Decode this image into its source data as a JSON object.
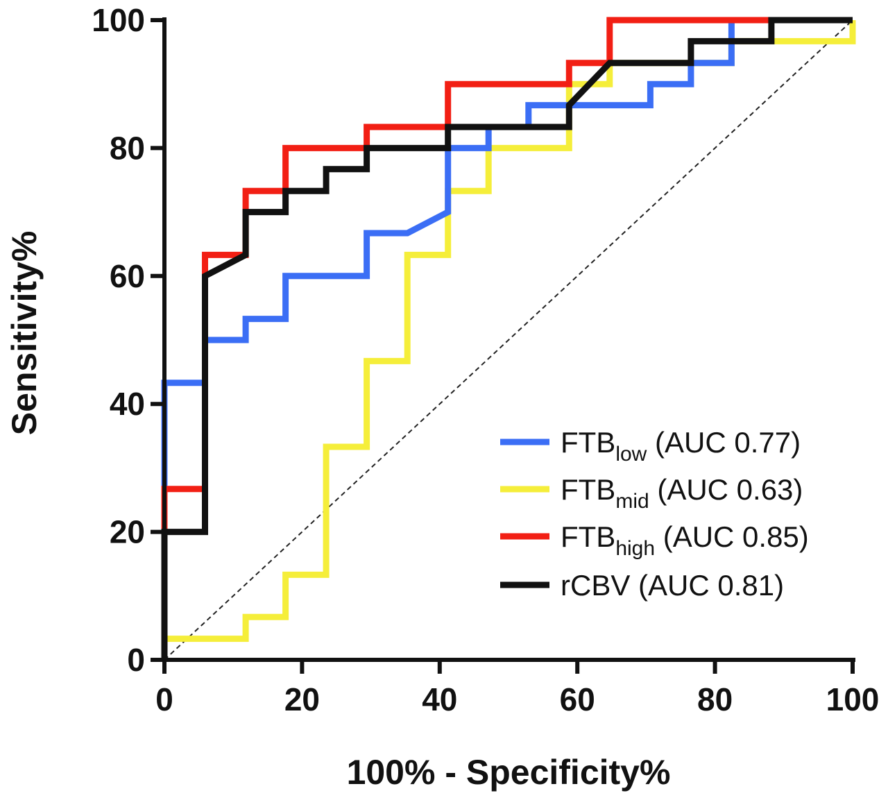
{
  "chart_data": {
    "type": "line",
    "xlabel": "100% - Specificity%",
    "ylabel": "Sensitivity%",
    "xlim": [
      0,
      100
    ],
    "ylim": [
      0,
      100
    ],
    "x_ticks": [
      "0",
      "20",
      "40",
      "60",
      "80",
      "100"
    ],
    "y_ticks": [
      "0",
      "20",
      "40",
      "60",
      "80",
      "100"
    ],
    "grid": false,
    "legend_position": "bottom-right",
    "reference_line": "diagonal dashed",
    "series": [
      {
        "legend_base": "FTB",
        "legend_sub": "low",
        "legend_suffix": " (AUC 0.77)",
        "color": "#3b6ef5",
        "points": [
          [
            0,
            0
          ],
          [
            0,
            43.3
          ],
          [
            5.9,
            43.3
          ],
          [
            5.9,
            50
          ],
          [
            11.8,
            50
          ],
          [
            11.8,
            53.3
          ],
          [
            17.6,
            53.3
          ],
          [
            17.6,
            60
          ],
          [
            29.4,
            60
          ],
          [
            29.4,
            66.7
          ],
          [
            35.3,
            66.7
          ],
          [
            41.2,
            70
          ],
          [
            41.2,
            80
          ],
          [
            47.1,
            80
          ],
          [
            47.1,
            83.3
          ],
          [
            52.9,
            83.3
          ],
          [
            52.9,
            86.7
          ],
          [
            70.6,
            86.7
          ],
          [
            70.6,
            90
          ],
          [
            76.5,
            90
          ],
          [
            76.5,
            93.3
          ],
          [
            82.4,
            93.3
          ],
          [
            82.4,
            100
          ],
          [
            100,
            100
          ]
        ]
      },
      {
        "legend_base": "FTB",
        "legend_sub": "mid",
        "legend_suffix": " (AUC 0.63)",
        "color": "#f5ee3a",
        "points": [
          [
            0,
            0
          ],
          [
            0,
            3.3
          ],
          [
            11.8,
            3.3
          ],
          [
            11.8,
            6.7
          ],
          [
            17.6,
            6.7
          ],
          [
            17.6,
            13.3
          ],
          [
            23.5,
            13.3
          ],
          [
            23.5,
            33.3
          ],
          [
            29.4,
            33.3
          ],
          [
            29.4,
            46.7
          ],
          [
            35.3,
            46.7
          ],
          [
            35.3,
            63.3
          ],
          [
            41.2,
            63.3
          ],
          [
            41.2,
            73.3
          ],
          [
            47.1,
            73.3
          ],
          [
            47.1,
            80
          ],
          [
            58.8,
            80
          ],
          [
            58.8,
            90
          ],
          [
            64.7,
            90
          ],
          [
            64.7,
            93.3
          ],
          [
            82.4,
            93.3
          ],
          [
            82.4,
            96.7
          ],
          [
            100,
            96.7
          ],
          [
            100,
            100
          ]
        ]
      },
      {
        "legend_base": "FTB",
        "legend_sub": "high",
        "legend_suffix": " (AUC 0.85)",
        "color": "#f21f14",
        "points": [
          [
            0,
            0
          ],
          [
            0,
            26.7
          ],
          [
            5.9,
            26.7
          ],
          [
            5.9,
            63.3
          ],
          [
            11.8,
            63.3
          ],
          [
            11.8,
            73.3
          ],
          [
            17.6,
            73.3
          ],
          [
            17.6,
            80
          ],
          [
            29.4,
            80
          ],
          [
            29.4,
            83.3
          ],
          [
            41.2,
            83.3
          ],
          [
            41.2,
            90
          ],
          [
            58.8,
            90
          ],
          [
            58.8,
            93.3
          ],
          [
            64.7,
            93.3
          ],
          [
            64.7,
            100
          ],
          [
            100,
            100
          ]
        ]
      },
      {
        "legend_base": "rCBV",
        "legend_sub": "",
        "legend_suffix": " (AUC 0.81)",
        "color": "#111111",
        "points": [
          [
            0,
            0
          ],
          [
            0,
            20
          ],
          [
            5.9,
            20
          ],
          [
            5.9,
            60
          ],
          [
            11.8,
            63.3
          ],
          [
            11.8,
            70
          ],
          [
            17.6,
            70
          ],
          [
            17.6,
            73.3
          ],
          [
            23.5,
            73.3
          ],
          [
            23.5,
            76.7
          ],
          [
            29.4,
            76.7
          ],
          [
            29.4,
            80
          ],
          [
            41.2,
            80
          ],
          [
            41.2,
            83.3
          ],
          [
            58.8,
            83.3
          ],
          [
            58.8,
            86.7
          ],
          [
            64.7,
            93.3
          ],
          [
            76.5,
            93.3
          ],
          [
            76.5,
            96.7
          ],
          [
            88.2,
            96.7
          ],
          [
            88.2,
            100
          ],
          [
            100,
            100
          ]
        ]
      }
    ]
  }
}
